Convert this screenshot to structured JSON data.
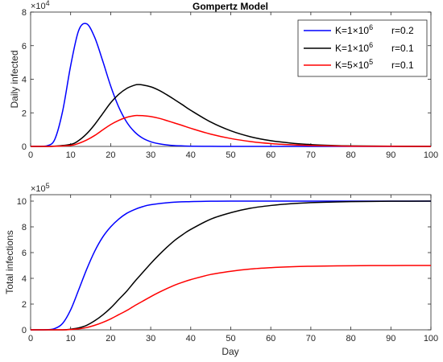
{
  "chart_data": [
    {
      "type": "line",
      "title": "Gompertz Model",
      "xlabel": "",
      "ylabel": "Daily infected",
      "y_exponent_label": "×10",
      "y_exponent_power": "4",
      "xlim": [
        0,
        100
      ],
      "ylim": [
        0,
        8
      ],
      "y_scale": 10000,
      "xticks": [
        0,
        10,
        20,
        30,
        40,
        50,
        60,
        70,
        80,
        90,
        100
      ],
      "yticks": [
        0,
        2,
        4,
        6,
        8
      ],
      "series": [
        {
          "legend_k": "K=1",
          "legend_times": "×",
          "legend_base": "10",
          "legend_exp": "6",
          "legend_r": "r=0.2",
          "color": "#0000ff",
          "K": 1000000,
          "r": 0.2,
          "x": [
            0,
            2,
            4,
            6,
            8,
            10,
            12,
            14,
            16,
            18,
            20,
            22,
            24,
            26,
            28,
            30,
            32,
            34,
            36,
            38,
            40,
            45,
            50,
            55,
            60,
            100
          ],
          "y": [
            0.0,
            0.0,
            0.03,
            0.4,
            2.1,
            4.8,
            6.9,
            7.3,
            6.5,
            5.1,
            3.6,
            2.35,
            1.45,
            0.86,
            0.49,
            0.28,
            0.16,
            0.09,
            0.05,
            0.03,
            0.015,
            0.005,
            0.001,
            0.0003,
            0.0,
            0.0
          ]
        },
        {
          "legend_k": "K=1",
          "legend_times": "×",
          "legend_base": "10",
          "legend_exp": "6",
          "legend_r": "r=0.1",
          "color": "#000000",
          "K": 1000000,
          "r": 0.1,
          "x": [
            0,
            5,
            10,
            12,
            14,
            16,
            18,
            20,
            22,
            24,
            26,
            27,
            28,
            30,
            32,
            34,
            36,
            38,
            40,
            45,
            50,
            55,
            60,
            65,
            70,
            75,
            80,
            90,
            100
          ],
          "y": [
            0.0,
            0.0,
            0.12,
            0.35,
            0.75,
            1.3,
            1.95,
            2.6,
            3.1,
            3.45,
            3.65,
            3.68,
            3.66,
            3.55,
            3.35,
            3.08,
            2.78,
            2.47,
            2.15,
            1.45,
            0.93,
            0.57,
            0.34,
            0.2,
            0.11,
            0.06,
            0.03,
            0.01,
            0.0
          ]
        },
        {
          "legend_k": "K=5",
          "legend_times": "×",
          "legend_base": "10",
          "legend_exp": "5",
          "legend_r": "r=0.1",
          "color": "#ff0000",
          "K": 500000,
          "r": 0.1,
          "x": [
            0,
            5,
            10,
            12,
            14,
            16,
            18,
            20,
            22,
            24,
            26,
            27,
            28,
            30,
            32,
            34,
            36,
            38,
            40,
            45,
            50,
            55,
            60,
            65,
            70,
            75,
            80,
            90,
            100
          ],
          "y": [
            0.0,
            0.0,
            0.06,
            0.18,
            0.38,
            0.65,
            0.98,
            1.3,
            1.55,
            1.73,
            1.83,
            1.84,
            1.83,
            1.78,
            1.68,
            1.54,
            1.39,
            1.24,
            1.08,
            0.73,
            0.47,
            0.29,
            0.17,
            0.1,
            0.055,
            0.03,
            0.015,
            0.005,
            0.0
          ]
        }
      ]
    },
    {
      "type": "line",
      "title": "",
      "xlabel": "Day",
      "ylabel": "Total infections",
      "y_exponent_label": "×10",
      "y_exponent_power": "5",
      "xlim": [
        0,
        100
      ],
      "ylim": [
        0,
        10.5
      ],
      "y_scale": 100000,
      "xticks": [
        0,
        10,
        20,
        30,
        40,
        50,
        60,
        70,
        80,
        90,
        100
      ],
      "yticks": [
        0,
        2,
        4,
        6,
        8,
        10
      ],
      "series": [
        {
          "color": "#0000ff",
          "x": [
            0,
            4,
            6,
            8,
            10,
            12,
            14,
            16,
            18,
            20,
            22,
            24,
            26,
            28,
            30,
            35,
            40,
            45,
            50,
            60,
            100
          ],
          "y": [
            0.0,
            0.01,
            0.1,
            0.5,
            1.55,
            3.1,
            4.7,
            6.1,
            7.2,
            8.0,
            8.6,
            9.05,
            9.35,
            9.57,
            9.72,
            9.9,
            9.96,
            9.99,
            10.0,
            10.0,
            10.0
          ]
        },
        {
          "color": "#000000",
          "x": [
            0,
            8,
            10,
            12,
            14,
            16,
            18,
            20,
            22,
            24,
            26,
            28,
            30,
            32,
            34,
            36,
            38,
            40,
            45,
            50,
            55,
            60,
            65,
            70,
            80,
            90,
            100
          ],
          "y": [
            0.0,
            0.0,
            0.05,
            0.15,
            0.35,
            0.7,
            1.15,
            1.7,
            2.35,
            3.0,
            3.75,
            4.45,
            5.15,
            5.8,
            6.4,
            6.95,
            7.4,
            7.8,
            8.6,
            9.1,
            9.45,
            9.66,
            9.8,
            9.88,
            9.96,
            9.99,
            10.0
          ]
        },
        {
          "color": "#ff0000",
          "x": [
            0,
            8,
            10,
            12,
            14,
            16,
            18,
            20,
            22,
            24,
            26,
            28,
            30,
            32,
            34,
            36,
            38,
            40,
            45,
            50,
            55,
            60,
            65,
            70,
            80,
            90,
            100
          ],
          "y": [
            0.0,
            0.0,
            0.025,
            0.075,
            0.175,
            0.35,
            0.575,
            0.85,
            1.175,
            1.5,
            1.875,
            2.225,
            2.575,
            2.9,
            3.2,
            3.475,
            3.7,
            3.9,
            4.3,
            4.55,
            4.725,
            4.83,
            4.9,
            4.94,
            4.98,
            4.995,
            5.0
          ]
        }
      ]
    }
  ]
}
